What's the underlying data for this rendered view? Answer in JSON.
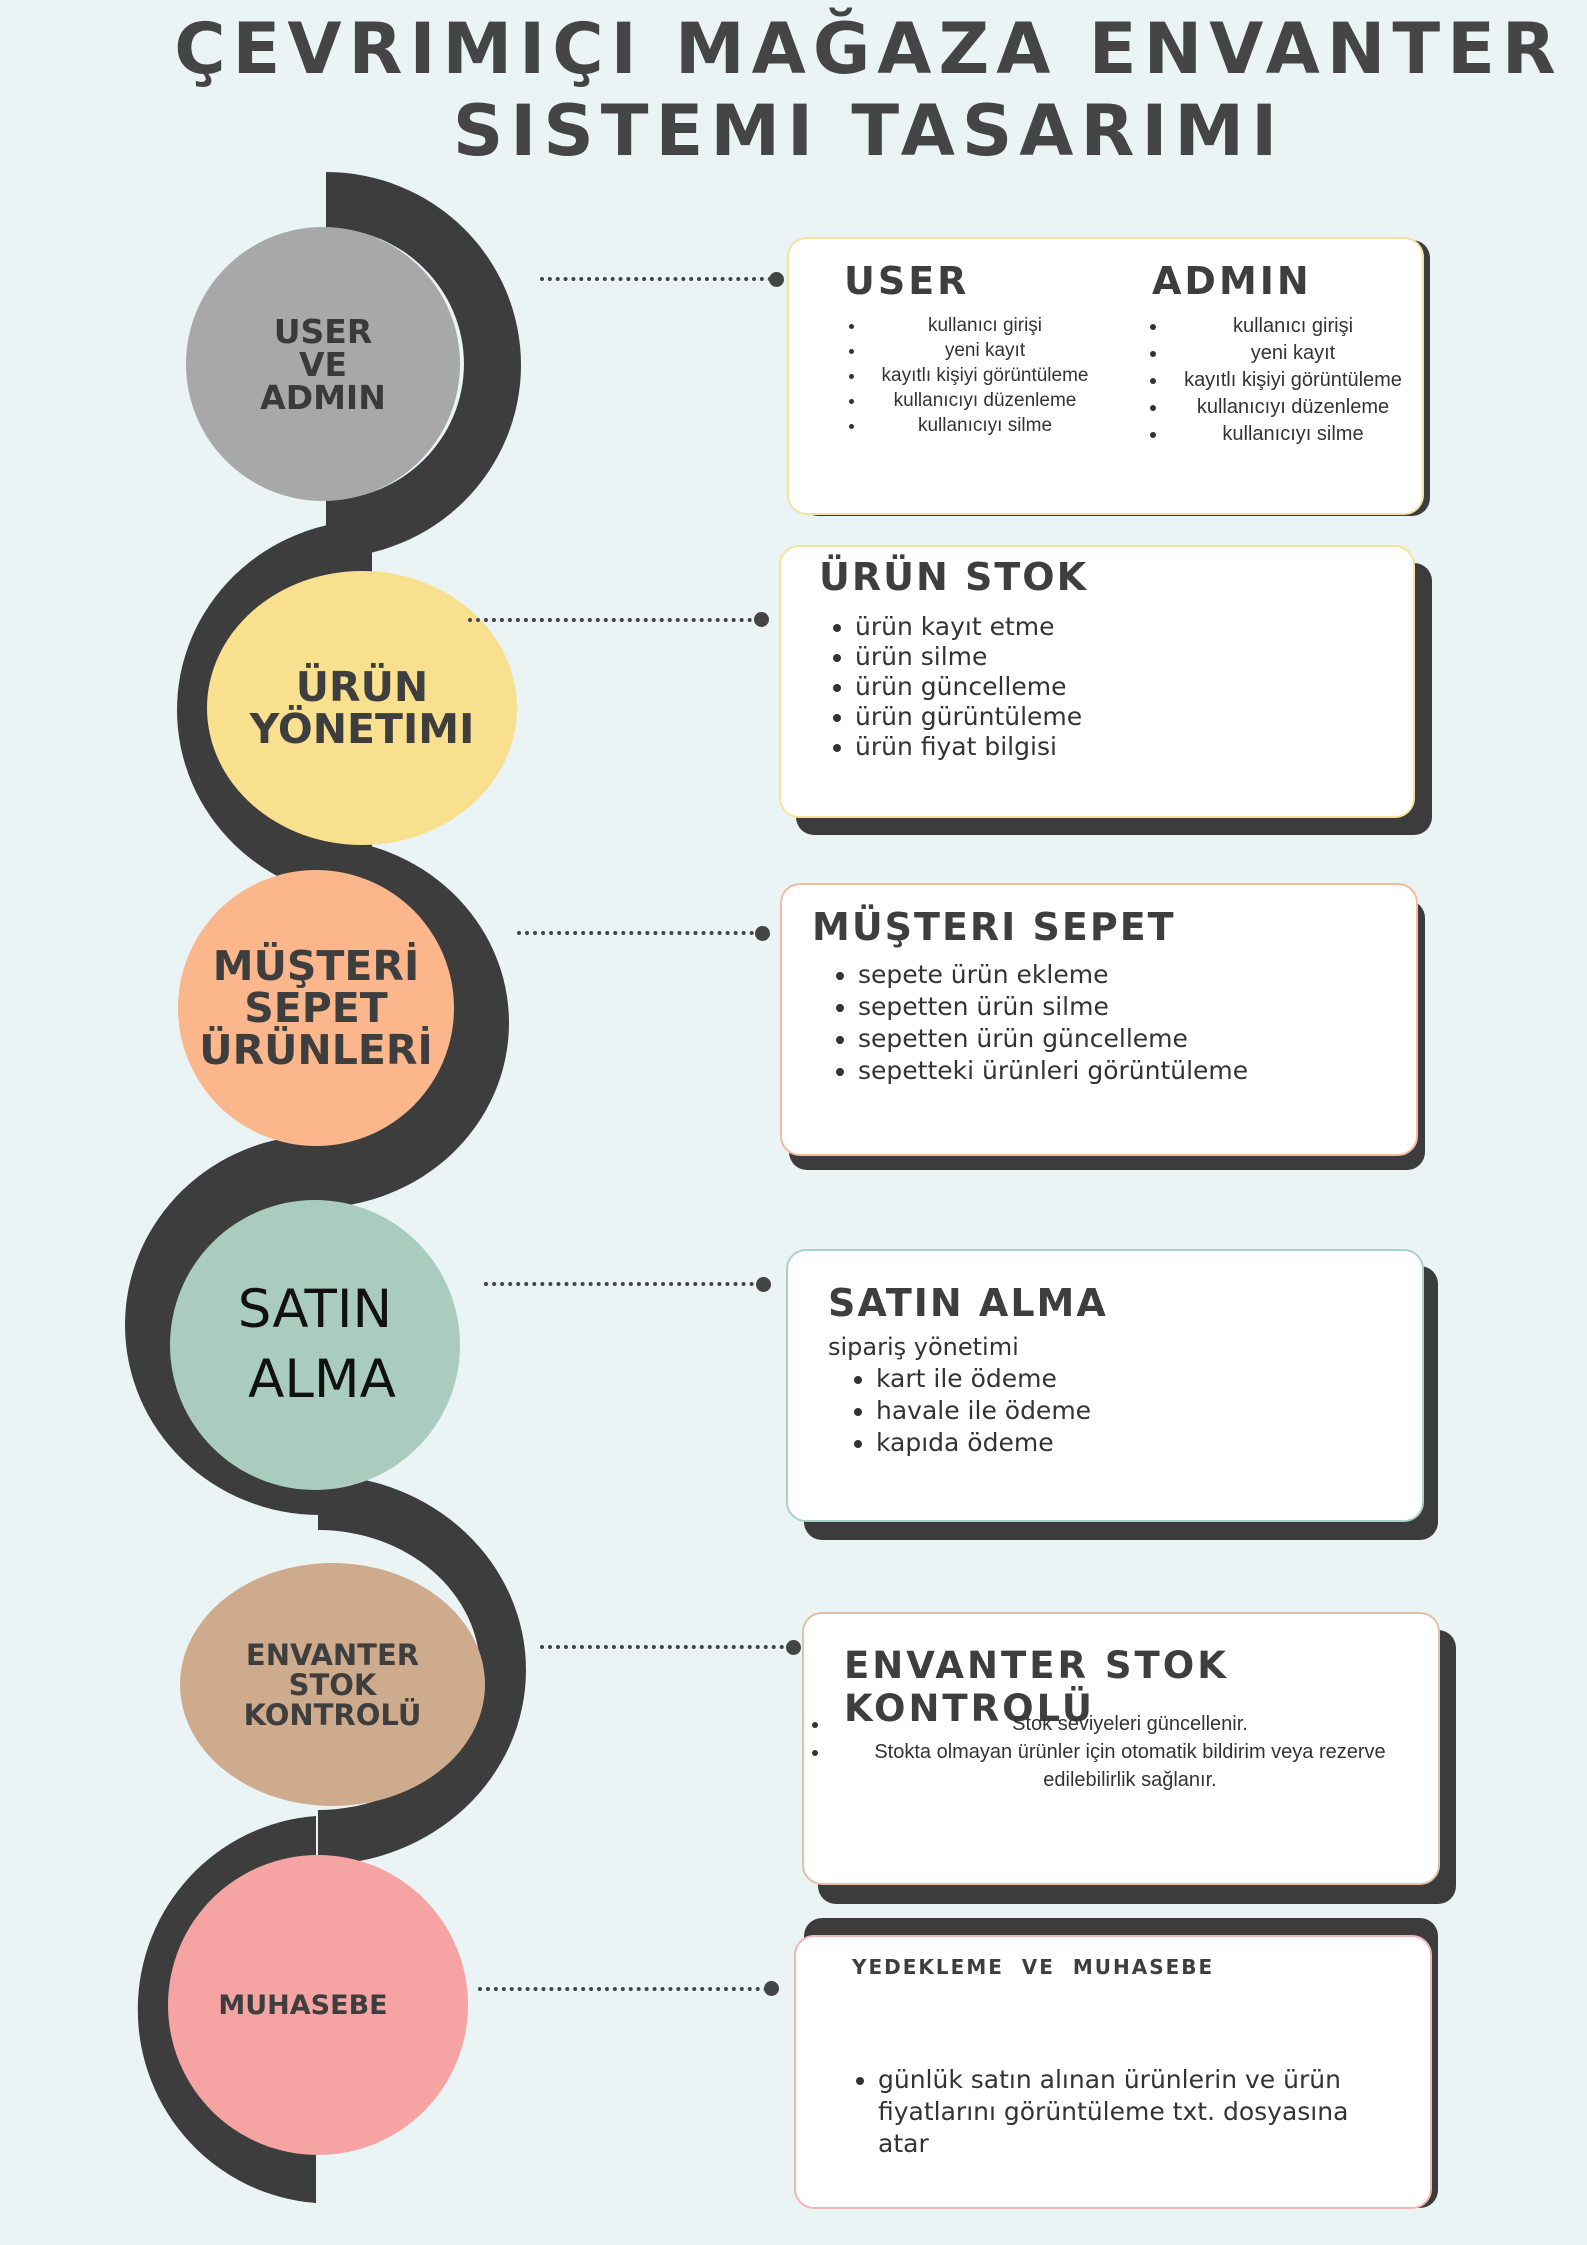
{
  "title": {
    "line1": "ÇEVRIMIÇI MAĞAZA ENVANTER",
    "line2": "SISTEMI TASARIMI"
  },
  "colors": {
    "background": "#eaf4f5",
    "spine": "#3d3d3d",
    "node_user_admin": "#a8a8a8",
    "node_urun": "#f8e08e",
    "node_musteri": "#fbb68c",
    "node_satin": "#a9ccbf",
    "node_envanter": "#cfab8d",
    "node_muhasebe": "#f6a3a3"
  },
  "nodes": [
    {
      "lines": [
        "USER",
        "VE",
        "ADMIN"
      ]
    },
    {
      "lines": [
        "ÜRÜN",
        "YÖNETIMI"
      ]
    },
    {
      "lines": [
        "MÜŞTERİ",
        "SEPET",
        "ÜRÜNLERİ"
      ]
    },
    {
      "lines": [
        "SATIN",
        "ALMA"
      ]
    },
    {
      "lines": [
        "ENVANTER",
        "STOK",
        "KONTROLÜ"
      ]
    },
    {
      "lines": [
        "MUHASEBE"
      ]
    }
  ],
  "cards": {
    "user_admin": {
      "user_title": "USER",
      "user_items": [
        "kullanıcı girişi",
        "yeni kayıt",
        "kayıtlı kişiyi görüntüleme",
        "kullanıcıyı düzenleme",
        "kullanıcıyı silme"
      ],
      "admin_title": "ADMIN",
      "admin_items": [
        "kullanıcı girişi",
        "yeni kayıt",
        "kayıtlı kişiyi görüntüleme",
        "kullanıcıyı düzenleme",
        "kullanıcıyı silme"
      ]
    },
    "urun_stok": {
      "title": "ÜRÜN STOK",
      "items": [
        "ürün kayıt etme",
        "ürün silme",
        "ürün güncelleme",
        "ürün gürüntüleme",
        "ürün fiyat bilgisi"
      ]
    },
    "musteri_sepet": {
      "title": "MÜŞTERI SEPET",
      "items": [
        "sepete ürün ekleme",
        "sepetten ürün silme",
        "sepetten ürün güncelleme",
        "sepetteki ürünleri görüntüleme"
      ]
    },
    "satin_alma": {
      "title": "SATIN ALMA",
      "subtitle": "sipariş yönetimi",
      "items": [
        "kart ile ödeme",
        "havale ile ödeme",
        "kapıda ödeme"
      ]
    },
    "envanter": {
      "title": "ENVANTER STOK KONTROLÜ",
      "items": [
        "Stok seviyeleri güncellenir.",
        "Stokta olmayan ürünler için otomatik bildirim veya rezerve edilebilirlik sağlanır."
      ]
    },
    "muhasebe": {
      "title": "YEDEKLEME  VE  MUHASEBE",
      "items": [
        "günlük satın alınan ürünlerin ve ürün fiyatlarını görüntüleme txt. dosyasına atar"
      ]
    }
  }
}
